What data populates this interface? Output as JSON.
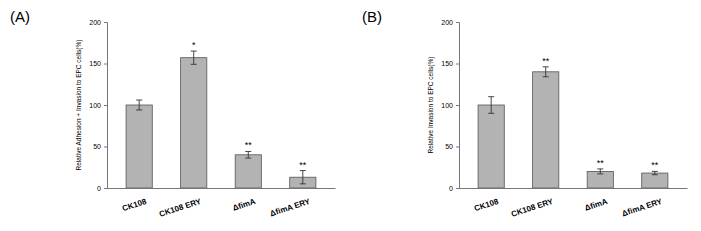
{
  "chart_data": [
    {
      "type": "bar",
      "title": "(A)",
      "y_label": "Relative Adhesion + Invasion to EPC cells(%)",
      "categories": [
        "CK108",
        "CK108 ERY",
        "ΔfimA",
        "ΔfimA ERY"
      ],
      "values": [
        100,
        157,
        40,
        13
      ],
      "errors": [
        6,
        8,
        4,
        8
      ],
      "significance": [
        null,
        "*",
        "**",
        "**"
      ],
      "color": "#b3b3b3",
      "ylim": [
        0,
        200
      ],
      "yticks": [
        0,
        50,
        100,
        150,
        200
      ]
    },
    {
      "type": "bar",
      "title": "(B)",
      "y_label": "Relative Invasion to EPC cells(%)",
      "categories": [
        "CK108",
        "CK108 ERY",
        "ΔfimA",
        "ΔfimA ERY"
      ],
      "values": [
        100,
        140,
        20,
        18
      ],
      "errors": [
        10,
        6,
        3,
        2
      ],
      "significance": [
        null,
        "**",
        "**",
        "**"
      ],
      "color": "#b3b3b3",
      "ylim": [
        0,
        200
      ],
      "yticks": [
        0,
        50,
        100,
        150,
        200
      ]
    }
  ]
}
